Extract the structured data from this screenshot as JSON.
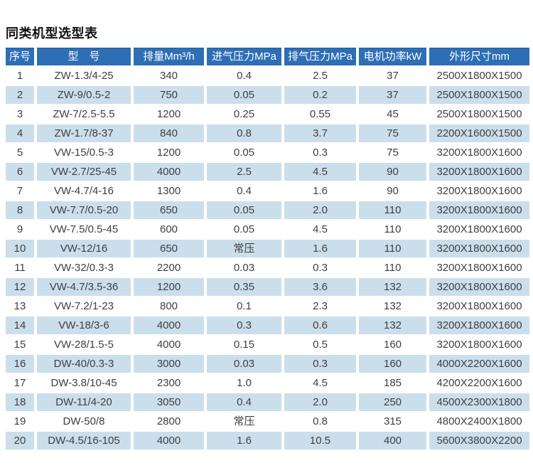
{
  "page_title": "同类机型选型表",
  "colors": {
    "page_bg": "#ffffff",
    "header_bg": "#2d6eb5",
    "header_text": "#ffffff",
    "row_bg": "#ffffff",
    "row_alt_bg": "#cbdeeb",
    "cell_text": "#3f3f3f",
    "title_text": "#111111"
  },
  "table": {
    "columns": [
      "序号",
      "型　号",
      "排量Mm³/h",
      "进气压力MPa",
      "排气压力MPa",
      "电机功率kW",
      "外形尺寸mm"
    ],
    "rows": [
      [
        "1",
        "ZW-1.3/4-25",
        "340",
        "0.4",
        "2.5",
        "37",
        "2500X1800X1500"
      ],
      [
        "2",
        "ZW-9/0.5-2",
        "750",
        "0.05",
        "0.2",
        "37",
        "2500X1800X1500"
      ],
      [
        "3",
        "ZW-7/2.5-5.5",
        "1200",
        "0.25",
        "0.55",
        "45",
        "2500X1800X1500"
      ],
      [
        "4",
        "ZW-1.7/8-37",
        "840",
        "0.8",
        "3.7",
        "75",
        "2200X1600X1500"
      ],
      [
        "5",
        "VW-15/0.5-3",
        "1200",
        "0.05",
        "0.3",
        "75",
        "3200X1800X1600"
      ],
      [
        "6",
        "VW-2.7/25-45",
        "4000",
        "2.5",
        "4.5",
        "90",
        "3200X1800X1600"
      ],
      [
        "7",
        "VW-4.7/4-16",
        "1300",
        "0.4",
        "1.6",
        "90",
        "3200X1800X1600"
      ],
      [
        "8",
        "VW-7.7/0.5-20",
        "650",
        "0.05",
        "2.0",
        "110",
        "3200X1800X1600"
      ],
      [
        "9",
        "VW-7.5/0.5-45",
        "600",
        "0.05",
        "4.5",
        "110",
        "3200X1800X1600"
      ],
      [
        "10",
        "VW-12/16",
        "650",
        "常压",
        "1.6",
        "110",
        "3200X1800X1600"
      ],
      [
        "11",
        "VW-32/0.3-3",
        "2200",
        "0.03",
        "0.3",
        "110",
        "3200X1800X1600"
      ],
      [
        "12",
        "VW-4.7/3.5-36",
        "1200",
        "0.35",
        "3.6",
        "132",
        "3200X1800X1600"
      ],
      [
        "13",
        "VW-7.2/1-23",
        "800",
        "0.1",
        "2.3",
        "132",
        "3200X1800X1600"
      ],
      [
        "14",
        "VW-18/3-6",
        "4000",
        "0.3",
        "0.6",
        "132",
        "3200X1800X1600"
      ],
      [
        "15",
        "VW-28/1.5-5",
        "4000",
        "0.15",
        "0.5",
        "160",
        "3200X1800X1600"
      ],
      [
        "16",
        "DW-40/0.3-3",
        "3000",
        "0.03",
        "0.3",
        "160",
        "4000X2200X1600"
      ],
      [
        "17",
        "DW-3.8/10-45",
        "2300",
        "1.0",
        "4.5",
        "185",
        "4200X2200X1600"
      ],
      [
        "18",
        "DW-11/4-20",
        "3050",
        "0.4",
        "2.0",
        "250",
        "4500X2300X1800"
      ],
      [
        "19",
        "DW-50/8",
        "2800",
        "常压",
        "0.8",
        "315",
        "4800X2400X1800"
      ],
      [
        "20",
        "DW-4.5/16-105",
        "4000",
        "1.6",
        "10.5",
        "400",
        "5600X3800X2200"
      ]
    ]
  }
}
